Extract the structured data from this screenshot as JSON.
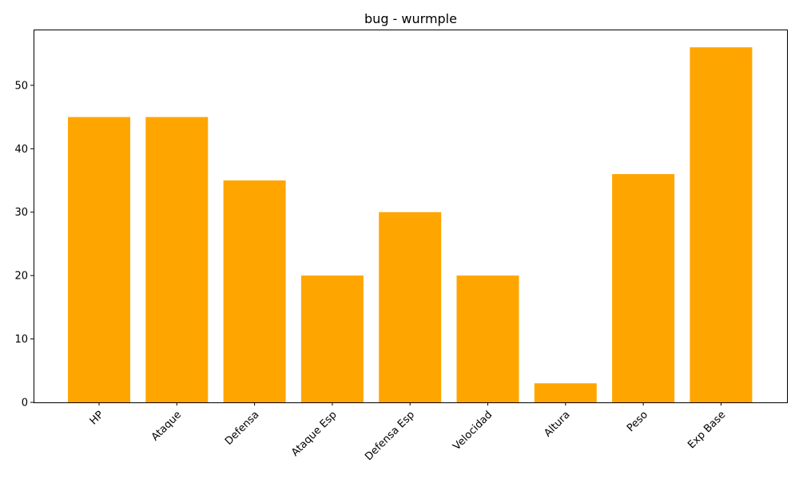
{
  "chart_data": {
    "type": "bar",
    "title": "bug - wurmple",
    "xlabel": "",
    "ylabel": "",
    "categories": [
      "HP",
      "Ataque",
      "Defensa",
      "Ataque Esp",
      "Defensa Esp",
      "Velocidad",
      "Altura",
      "Peso",
      "Exp Base"
    ],
    "values": [
      45,
      45,
      35,
      20,
      30,
      20,
      3,
      36,
      56
    ],
    "ylim": [
      0,
      58.8
    ],
    "yticks": [
      0,
      10,
      20,
      30,
      40,
      50
    ],
    "x_tick_rotation": 45,
    "bar_color": "#ffa500",
    "grid": false,
    "legend": "none"
  }
}
